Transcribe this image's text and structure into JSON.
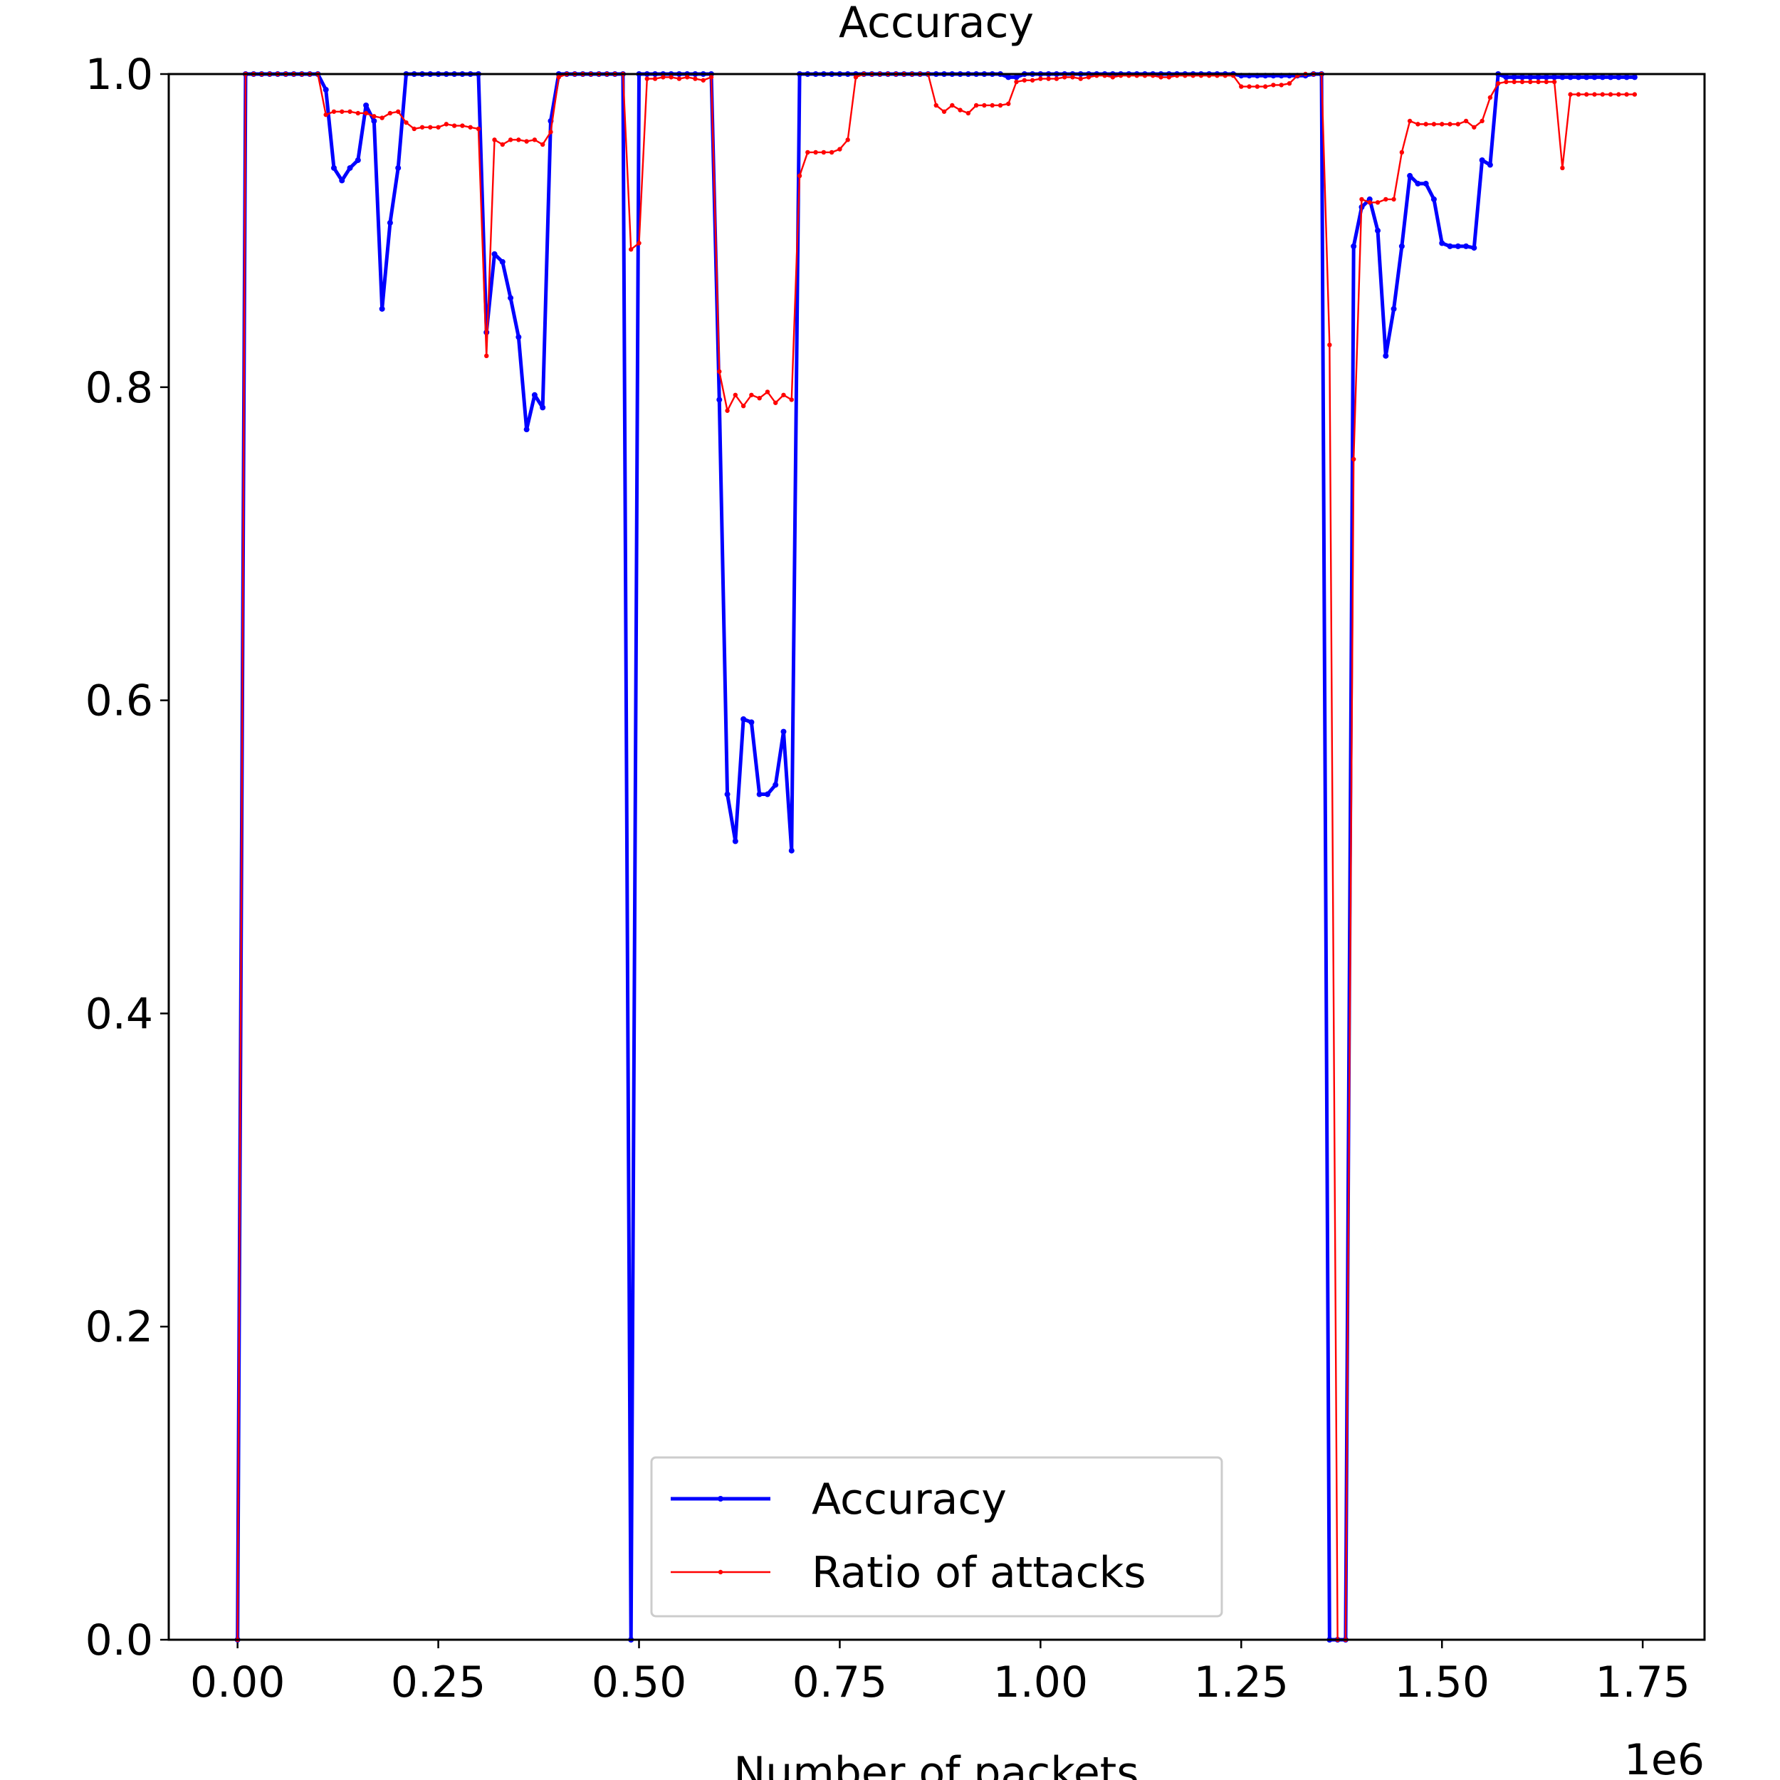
{
  "chart_data": {
    "type": "line",
    "title": "Accuracy",
    "x_label": "Number of packets",
    "x_offset_label": "1e6",
    "x": [
      0.0,
      0.01,
      0.02,
      0.03,
      0.04,
      0.05,
      0.06,
      0.07,
      0.08,
      0.09,
      0.1,
      0.11,
      0.12,
      0.13,
      0.14,
      0.15,
      0.16,
      0.17,
      0.18,
      0.19,
      0.2,
      0.21,
      0.22,
      0.23,
      0.24,
      0.25,
      0.26,
      0.27,
      0.28,
      0.29,
      0.3,
      0.31,
      0.32,
      0.33,
      0.34,
      0.35,
      0.36,
      0.37,
      0.38,
      0.39,
      0.4,
      0.41,
      0.42,
      0.43,
      0.44,
      0.45,
      0.46,
      0.47,
      0.48,
      0.49,
      0.5,
      0.51,
      0.52,
      0.53,
      0.54,
      0.55,
      0.56,
      0.57,
      0.58,
      0.59,
      0.6,
      0.61,
      0.62,
      0.63,
      0.64,
      0.65,
      0.66,
      0.67,
      0.68,
      0.69,
      0.7,
      0.71,
      0.72,
      0.73,
      0.74,
      0.75,
      0.76,
      0.77,
      0.78,
      0.79,
      0.8,
      0.81,
      0.82,
      0.83,
      0.84,
      0.85,
      0.86,
      0.87,
      0.88,
      0.89,
      0.9,
      0.91,
      0.92,
      0.93,
      0.94,
      0.95,
      0.96,
      0.97,
      0.98,
      0.99,
      1.0,
      1.01,
      1.02,
      1.03,
      1.04,
      1.05,
      1.06,
      1.07,
      1.08,
      1.09,
      1.1,
      1.11,
      1.12,
      1.13,
      1.14,
      1.15,
      1.16,
      1.17,
      1.18,
      1.19,
      1.2,
      1.21,
      1.22,
      1.23,
      1.24,
      1.25,
      1.26,
      1.27,
      1.28,
      1.29,
      1.3,
      1.31,
      1.32,
      1.33,
      1.34,
      1.35,
      1.36,
      1.37,
      1.38,
      1.39,
      1.4,
      1.41,
      1.42,
      1.43,
      1.44,
      1.45,
      1.46,
      1.47,
      1.48,
      1.49,
      1.5,
      1.51,
      1.52,
      1.53,
      1.54,
      1.55,
      1.56,
      1.57,
      1.58,
      1.59,
      1.6,
      1.61,
      1.62,
      1.63,
      1.64,
      1.65,
      1.66,
      1.67,
      1.68,
      1.69,
      1.7,
      1.71,
      1.72,
      1.73,
      1.74
    ],
    "series": [
      {
        "name": "Accuracy",
        "color": "#0000ff",
        "values": [
          0,
          1,
          1,
          1,
          1,
          1,
          1,
          1,
          1,
          1,
          1,
          0.99,
          0.94,
          0.932,
          0.94,
          0.945,
          0.98,
          0.97,
          0.85,
          0.905,
          0.94,
          1,
          1,
          1,
          1,
          1,
          1,
          1,
          1,
          1,
          1,
          0.835,
          0.885,
          0.88,
          0.857,
          0.832,
          0.773,
          0.795,
          0.787,
          0.97,
          1,
          1,
          1,
          1,
          1,
          1,
          1,
          1,
          1,
          0,
          1,
          1,
          1,
          1,
          1,
          1,
          1,
          1,
          1,
          1,
          0.792,
          0.54,
          0.51,
          0.588,
          0.586,
          0.54,
          0.54,
          0.546,
          0.58,
          0.504,
          1,
          1,
          1,
          1,
          1,
          1,
          1,
          1,
          1,
          1,
          1,
          1,
          1,
          1,
          1,
          1,
          1,
          1,
          1,
          1,
          1,
          1,
          1,
          1,
          1,
          1,
          0.998,
          0.998,
          1,
          1,
          1,
          1,
          1,
          1,
          1,
          1,
          1,
          1,
          1,
          1,
          1,
          1,
          1,
          1,
          1,
          1,
          1,
          1,
          1,
          1,
          1,
          1,
          1,
          1,
          1,
          0.999,
          0.999,
          0.999,
          0.999,
          0.999,
          0.999,
          0.999,
          0.999,
          0.999,
          1,
          1,
          0,
          0,
          0,
          0.89,
          0.915,
          0.92,
          0.9,
          0.82,
          0.85,
          0.89,
          0.935,
          0.93,
          0.93,
          0.92,
          0.892,
          0.89,
          0.89,
          0.89,
          0.889,
          0.945,
          0.942,
          1,
          0.998,
          0.998,
          0.998,
          0.998,
          0.998,
          0.998,
          0.998,
          0.998,
          0.998,
          0.998,
          0.998,
          0.998,
          0.998,
          0.998,
          0.998,
          0.998,
          0.998
        ]
      },
      {
        "name": "Ratio of attacks",
        "color": "#ff0000",
        "values": [
          0,
          1,
          1,
          1,
          1,
          1,
          1,
          1,
          1,
          1,
          1,
          0.974,
          0.976,
          0.976,
          0.976,
          0.975,
          0.975,
          0.973,
          0.972,
          0.975,
          0.976,
          0.969,
          0.965,
          0.966,
          0.966,
          0.966,
          0.968,
          0.967,
          0.967,
          0.966,
          0.965,
          0.82,
          0.958,
          0.955,
          0.958,
          0.958,
          0.957,
          0.958,
          0.955,
          0.963,
          0.998,
          1,
          1,
          1,
          1,
          1,
          1,
          1,
          1,
          0.888,
          0.892,
          0.997,
          0.997,
          0.998,
          0.998,
          0.997,
          0.998,
          0.997,
          0.996,
          0.998,
          0.81,
          0.785,
          0.795,
          0.788,
          0.795,
          0.793,
          0.797,
          0.79,
          0.795,
          0.792,
          0.935,
          0.95,
          0.95,
          0.95,
          0.95,
          0.952,
          0.958,
          0.998,
          1,
          1,
          1,
          1,
          1,
          1,
          1,
          1,
          1,
          0.98,
          0.976,
          0.98,
          0.977,
          0.975,
          0.98,
          0.98,
          0.98,
          0.98,
          0.981,
          0.995,
          0.996,
          0.996,
          0.997,
          0.997,
          0.997,
          0.998,
          0.998,
          0.997,
          0.998,
          0.999,
          0.999,
          0.998,
          0.999,
          0.999,
          0.999,
          0.999,
          0.999,
          0.998,
          0.998,
          0.999,
          0.999,
          0.999,
          0.999,
          0.999,
          0.999,
          0.999,
          0.999,
          0.992,
          0.992,
          0.992,
          0.992,
          0.993,
          0.993,
          0.994,
          0.999,
          1,
          1,
          1,
          0.827,
          0,
          0,
          0.754,
          0.92,
          0.918,
          0.918,
          0.92,
          0.92,
          0.95,
          0.97,
          0.968,
          0.968,
          0.968,
          0.968,
          0.968,
          0.968,
          0.97,
          0.966,
          0.97,
          0.985,
          0.994,
          0.995,
          0.995,
          0.995,
          0.995,
          0.995,
          0.995,
          0.995,
          0.94,
          0.987,
          0.987,
          0.987,
          0.987,
          0.987,
          0.987,
          0.987,
          0.987,
          0.987
        ]
      }
    ],
    "xlim": [
      -0.0857,
      1.827
    ],
    "ylim": [
      0,
      1
    ],
    "xticks": [
      {
        "value": 0,
        "label": "0.00"
      },
      {
        "value": 0.25,
        "label": "0.25"
      },
      {
        "value": 0.5,
        "label": "0.50"
      },
      {
        "value": 0.75,
        "label": "0.75"
      },
      {
        "value": 1,
        "label": "1.00"
      },
      {
        "value": 1.25,
        "label": "1.25"
      },
      {
        "value": 1.5,
        "label": "1.50"
      },
      {
        "value": 1.75,
        "label": "1.75"
      }
    ],
    "yticks": [
      {
        "value": 0,
        "label": "0.0"
      },
      {
        "value": 0.2,
        "label": "0.2"
      },
      {
        "value": 0.4,
        "label": "0.4"
      },
      {
        "value": 0.6,
        "label": "0.6"
      },
      {
        "value": 0.8,
        "label": "0.8"
      },
      {
        "value": 1,
        "label": "1.0"
      }
    ],
    "grid": false,
    "legend": "lower center"
  }
}
